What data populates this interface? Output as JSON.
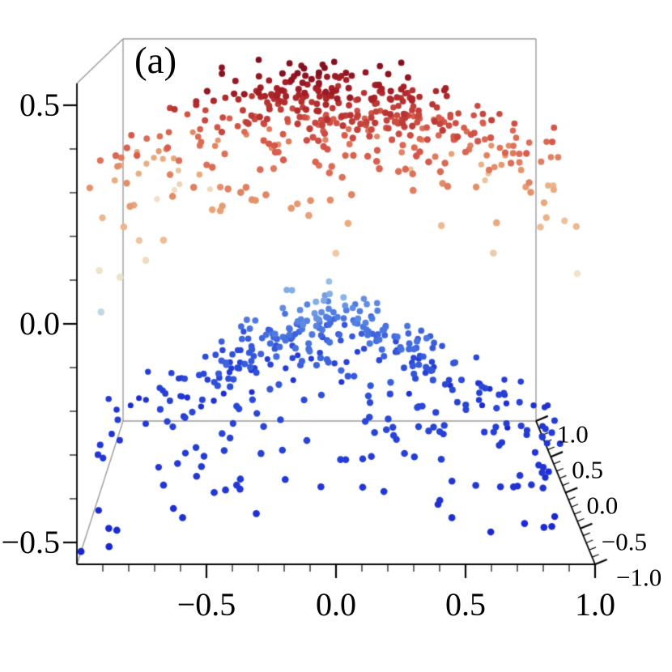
{
  "figure": {
    "panel_label": "(a)",
    "background": "#ffffff"
  },
  "style": {
    "axis_color": "#000000",
    "box_color": "#9a9a9a",
    "label_color": "#000000"
  },
  "chart_data": {
    "type": "scatter",
    "subtype": "3d-point-cloud",
    "title": "(a)",
    "points_approximate": true,
    "axes": {
      "x": {
        "range": [
          -1,
          1
        ],
        "major_ticks": [
          -0.5,
          0.0,
          0.5,
          1.0
        ],
        "tick_labels": [
          "−0.5",
          "0.0",
          "0.5",
          "1.0"
        ],
        "minor_step": 0.1
      },
      "y": {
        "range": [
          -1,
          1
        ],
        "major_ticks": [
          1.0,
          0.5,
          0.0,
          -0.5,
          -1.0
        ],
        "tick_labels": [
          "1.0",
          "0.5",
          "0.0",
          "−0.5",
          "−1.0"
        ],
        "minor_step": 0.1
      },
      "z": {
        "range": [
          -0.55,
          0.55
        ],
        "major_ticks": [
          0.5,
          0.0,
          -0.5
        ],
        "tick_labels": [
          "0.5",
          "0.0",
          "−0.5"
        ],
        "minor_step": 0.1
      }
    },
    "color_by": "z",
    "colormap": {
      "name": "temperature-blue-to-red",
      "stops": [
        [
          0.0,
          "#1822cd"
        ],
        [
          0.28,
          "#2b4ad8"
        ],
        [
          0.4,
          "#4f7ce2"
        ],
        [
          0.47,
          "#8fb8e4"
        ],
        [
          0.53,
          "#cfe0e0"
        ],
        [
          0.6,
          "#f0e2c8"
        ],
        [
          0.72,
          "#e9a476"
        ],
        [
          0.83,
          "#d65a4a"
        ],
        [
          0.93,
          "#a82026"
        ],
        [
          1.0,
          "#7a0c1d"
        ]
      ]
    },
    "bands": [
      {
        "name": "lower-cone",
        "count_uniform": 230,
        "count_core": 170,
        "core_sigma": 0.3,
        "z_base": -0.06,
        "z_linear_r": -0.34,
        "z_quad_r": 0.0,
        "z_noise": 0.035
      },
      {
        "name": "upper-dome",
        "count_uniform": 250,
        "count_core": 200,
        "core_sigma": 0.33,
        "z_base": 0.46,
        "z_linear_r": 0.0,
        "z_quad_r": -0.2,
        "z_noise": 0.05
      }
    ],
    "seed": 1337,
    "point_radius": 4.4
  }
}
